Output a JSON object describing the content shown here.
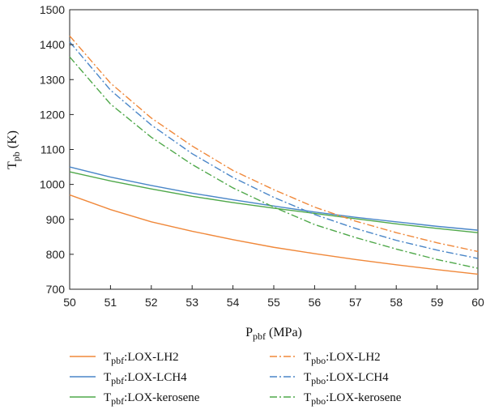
{
  "chart_data": {
    "type": "line",
    "xlabel": {
      "main": "P",
      "sub": "pbf",
      "unit": " (MPa)"
    },
    "ylabel": {
      "main": "T",
      "sub": "pb",
      "unit": " (K)"
    },
    "xlim": [
      50,
      60
    ],
    "ylim": [
      700,
      1500
    ],
    "xticks": [
      50,
      51,
      52,
      53,
      54,
      55,
      56,
      57,
      58,
      59,
      60
    ],
    "yticks": [
      700,
      800,
      900,
      1000,
      1100,
      1200,
      1300,
      1400,
      1500
    ],
    "grid": false,
    "legend_position": "bottom",
    "series": [
      {
        "name": "Tpbf:LOX-LH2",
        "label_main": "T",
        "label_sub": "pbf",
        "label_rest": ":LOX-LH2",
        "color": "#f0883a",
        "dash": "solid",
        "x": [
          50,
          51,
          52,
          53,
          54,
          55,
          56,
          57,
          58,
          59,
          60
        ],
        "y": [
          970,
          928,
          893,
          866,
          842,
          820,
          802,
          785,
          770,
          756,
          743
        ]
      },
      {
        "name": "Tpbf:LOX-LCH4",
        "label_main": "T",
        "label_sub": "pbf",
        "label_rest": ":LOX-LCH4",
        "color": "#4a86c8",
        "dash": "solid",
        "x": [
          50,
          51,
          52,
          53,
          54,
          55,
          56,
          57,
          58,
          59,
          60
        ],
        "y": [
          1050,
          1021,
          997,
          975,
          956,
          938,
          921,
          906,
          893,
          880,
          869
        ]
      },
      {
        "name": "Tpbf:LOX-kerosene",
        "label_main": "T",
        "label_sub": "pbf",
        "label_rest": ":LOX-kerosene",
        "color": "#4fa84a",
        "dash": "solid",
        "x": [
          50,
          51,
          52,
          53,
          54,
          55,
          56,
          57,
          58,
          59,
          60
        ],
        "y": [
          1036,
          1010,
          987,
          966,
          948,
          932,
          917,
          902,
          887,
          874,
          862
        ]
      },
      {
        "name": "Tpbo:LOX-LH2",
        "label_main": "T",
        "label_sub": "pbo",
        "label_rest": ":LOX-LH2",
        "color": "#f0883a",
        "dash": "dashdot",
        "x": [
          50,
          51,
          52,
          53,
          54,
          55,
          56,
          57,
          58,
          59,
          60
        ],
        "y": [
          1425,
          1290,
          1190,
          1110,
          1040,
          985,
          935,
          895,
          862,
          833,
          808
        ]
      },
      {
        "name": "Tpbo:LOX-LCH4",
        "label_main": "T",
        "label_sub": "pbo",
        "label_rest": ":LOX-LCH4",
        "color": "#4a86c8",
        "dash": "dashdot",
        "x": [
          50,
          51,
          52,
          53,
          54,
          55,
          56,
          57,
          58,
          59,
          60
        ],
        "y": [
          1408,
          1270,
          1170,
          1088,
          1020,
          963,
          914,
          874,
          840,
          812,
          788
        ]
      },
      {
        "name": "Tpbo:LOX-kerosene",
        "label_main": "T",
        "label_sub": "pbo",
        "label_rest": ":LOX-kerosene",
        "color": "#4fa84a",
        "dash": "dashdot",
        "x": [
          50,
          51,
          52,
          53,
          54,
          55,
          56,
          57,
          58,
          59,
          60
        ],
        "y": [
          1365,
          1230,
          1135,
          1057,
          990,
          935,
          885,
          848,
          815,
          785,
          760
        ]
      }
    ]
  }
}
